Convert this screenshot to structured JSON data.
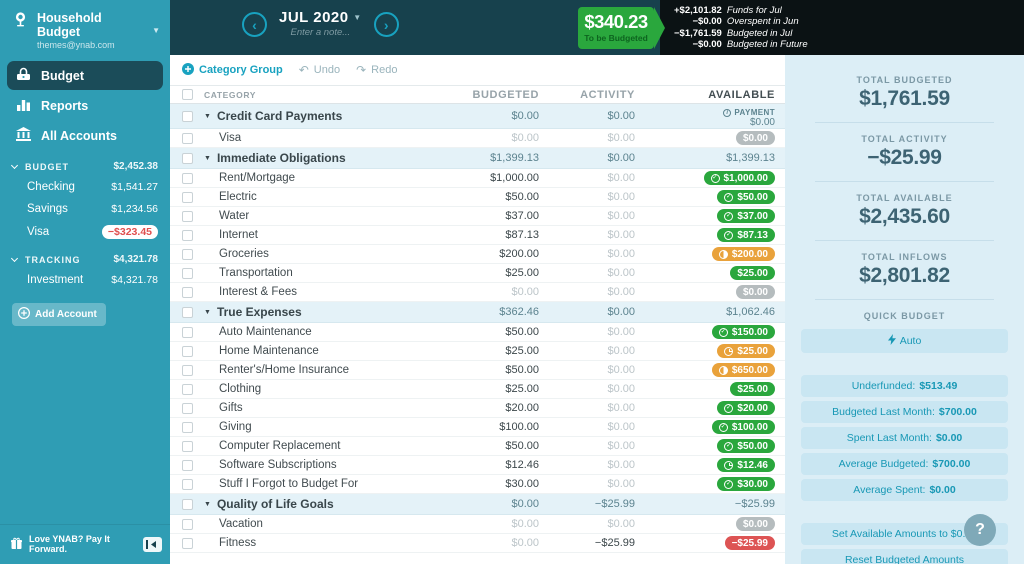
{
  "sidebar": {
    "budget_name": "Household Budget",
    "email": "themes@ynab.com",
    "nav": [
      {
        "id": "budget",
        "label": "Budget",
        "icon": "budget-icon",
        "selected": true
      },
      {
        "id": "reports",
        "label": "Reports",
        "icon": "reports-icon",
        "selected": false
      },
      {
        "id": "all-accounts",
        "label": "All Accounts",
        "icon": "bank-icon",
        "selected": false
      }
    ],
    "sections": [
      {
        "label": "BUDGET",
        "total": "$2,452.38",
        "accounts": [
          {
            "name": "Checking",
            "amount": "$1,541.27",
            "negative": false
          },
          {
            "name": "Savings",
            "amount": "$1,234.56",
            "negative": false
          },
          {
            "name": "Visa",
            "amount": "−$323.45",
            "negative": true
          }
        ]
      },
      {
        "label": "TRACKING",
        "total": "$4,321.78",
        "accounts": [
          {
            "name": "Investment",
            "amount": "$4,321.78",
            "negative": false
          }
        ]
      }
    ],
    "add_account_label": "Add Account",
    "footer_message": "Love YNAB? Pay It Forward."
  },
  "header": {
    "month": "JUL 2020",
    "note_placeholder": "Enter a note...",
    "to_be_budgeted": {
      "amount": "$340.23",
      "label": "To be Budgeted"
    },
    "breakdown": [
      {
        "amount": "+$2,101.82",
        "label": "Funds for Jul"
      },
      {
        "amount": "−$0.00",
        "label": "Overspent in Jun"
      },
      {
        "amount": "−$1,761.59",
        "label": "Budgeted in Jul"
      },
      {
        "amount": "−$0.00",
        "label": "Budgeted in Future"
      }
    ]
  },
  "toolbar": {
    "category_group_label": "Category Group",
    "undo_label": "Undo",
    "redo_label": "Redo"
  },
  "table": {
    "columns": {
      "category": "CATEGORY",
      "budgeted": "BUDGETED",
      "activity": "ACTIVITY",
      "available": "AVAILABLE"
    },
    "groups": [
      {
        "name": "Credit Card Payments",
        "budgeted": "$0.00",
        "activity": "$0.00",
        "available": {
          "type": "payment",
          "label": "PAYMENT",
          "amount": "$0.00"
        },
        "rows": [
          {
            "name": "Visa",
            "budgeted": "$0.00",
            "activity": "$0.00",
            "pill": {
              "text": "$0.00",
              "color": "gray",
              "icon": null
            }
          }
        ]
      },
      {
        "name": "Immediate Obligations",
        "budgeted": "$1,399.13",
        "activity": "$0.00",
        "available": {
          "type": "text",
          "text": "$1,399.13"
        },
        "rows": [
          {
            "name": "Rent/Mortgage",
            "budgeted": "$1,000.00",
            "activity": "$0.00",
            "pill": {
              "text": "$1,000.00",
              "color": "green",
              "icon": "check"
            }
          },
          {
            "name": "Electric",
            "budgeted": "$50.00",
            "activity": "$0.00",
            "pill": {
              "text": "$50.00",
              "color": "green",
              "icon": "check"
            }
          },
          {
            "name": "Water",
            "budgeted": "$37.00",
            "activity": "$0.00",
            "pill": {
              "text": "$37.00",
              "color": "green",
              "icon": "check"
            }
          },
          {
            "name": "Internet",
            "budgeted": "$87.13",
            "activity": "$0.00",
            "pill": {
              "text": "$87.13",
              "color": "green",
              "icon": "check"
            }
          },
          {
            "name": "Groceries",
            "budgeted": "$200.00",
            "activity": "$0.00",
            "pill": {
              "text": "$200.00",
              "color": "orange",
              "icon": "half"
            }
          },
          {
            "name": "Transportation",
            "budgeted": "$25.00",
            "activity": "$0.00",
            "pill": {
              "text": "$25.00",
              "color": "green",
              "icon": null
            }
          },
          {
            "name": "Interest & Fees",
            "budgeted": "$0.00",
            "activity": "$0.00",
            "pill": {
              "text": "$0.00",
              "color": "gray",
              "icon": null
            }
          }
        ]
      },
      {
        "name": "True Expenses",
        "budgeted": "$362.46",
        "activity": "$0.00",
        "available": {
          "type": "text",
          "text": "$1,062.46"
        },
        "rows": [
          {
            "name": "Auto Maintenance",
            "budgeted": "$50.00",
            "activity": "$0.00",
            "pill": {
              "text": "$150.00",
              "color": "green",
              "icon": "check"
            }
          },
          {
            "name": "Home Maintenance",
            "budgeted": "$25.00",
            "activity": "$0.00",
            "pill": {
              "text": "$25.00",
              "color": "orange",
              "icon": "clock"
            }
          },
          {
            "name": "Renter's/Home Insurance",
            "budgeted": "$50.00",
            "activity": "$0.00",
            "pill": {
              "text": "$650.00",
              "color": "orange",
              "icon": "half"
            }
          },
          {
            "name": "Clothing",
            "budgeted": "$25.00",
            "activity": "$0.00",
            "pill": {
              "text": "$25.00",
              "color": "green",
              "icon": null
            }
          },
          {
            "name": "Gifts",
            "budgeted": "$20.00",
            "activity": "$0.00",
            "pill": {
              "text": "$20.00",
              "color": "green",
              "icon": "check"
            }
          },
          {
            "name": "Giving",
            "budgeted": "$100.00",
            "activity": "$0.00",
            "pill": {
              "text": "$100.00",
              "color": "green",
              "icon": "check"
            }
          },
          {
            "name": "Computer Replacement",
            "budgeted": "$50.00",
            "activity": "$0.00",
            "pill": {
              "text": "$50.00",
              "color": "green",
              "icon": "check"
            }
          },
          {
            "name": "Software Subscriptions",
            "budgeted": "$12.46",
            "activity": "$0.00",
            "pill": {
              "text": "$12.46",
              "color": "green",
              "icon": "clock"
            }
          },
          {
            "name": "Stuff I Forgot to Budget For",
            "budgeted": "$30.00",
            "activity": "$0.00",
            "pill": {
              "text": "$30.00",
              "color": "green",
              "icon": "check"
            }
          }
        ]
      },
      {
        "name": "Quality of Life Goals",
        "budgeted": "$0.00",
        "activity": "−$25.99",
        "available": {
          "type": "text",
          "text": "−$25.99"
        },
        "rows": [
          {
            "name": "Vacation",
            "budgeted": "$0.00",
            "activity": "$0.00",
            "pill": {
              "text": "$0.00",
              "color": "gray",
              "icon": null
            }
          },
          {
            "name": "Fitness",
            "budgeted": "$0.00",
            "activity": "−$25.99",
            "pill": {
              "text": "−$25.99",
              "color": "red",
              "icon": null
            }
          }
        ]
      }
    ]
  },
  "inspector": {
    "totals": [
      {
        "label": "TOTAL BUDGETED",
        "amount": "$1,761.59"
      },
      {
        "label": "TOTAL ACTIVITY",
        "amount": "−$25.99"
      },
      {
        "label": "TOTAL AVAILABLE",
        "amount": "$2,435.60"
      },
      {
        "label": "TOTAL INFLOWS",
        "amount": "$2,801.82"
      }
    ],
    "quick_budget": {
      "title": "QUICK BUDGET",
      "auto_label": "Auto",
      "buttons": [
        {
          "label": "Underfunded:",
          "amount": "$513.49"
        },
        {
          "label": "Budgeted Last Month:",
          "amount": "$700.00"
        },
        {
          "label": "Spent Last Month:",
          "amount": "$0.00"
        },
        {
          "label": "Average Budgeted:",
          "amount": "$700.00"
        },
        {
          "label": "Average Spent:",
          "amount": "$0.00"
        }
      ],
      "actions": [
        "Set Available Amounts to $0.00",
        "Reset Budgeted Amounts"
      ]
    },
    "help_label": "?"
  },
  "colors": {
    "sidebar_teal": "#2f9db4",
    "header_dark": "#17414d",
    "accent_teal": "#18a2c0",
    "tbb_green": "#2aa73d",
    "pill_orange": "#e9a23b",
    "pill_red": "#dd5454",
    "pill_gray": "#b5bcbe",
    "inspector_bg": "#dceef6"
  }
}
